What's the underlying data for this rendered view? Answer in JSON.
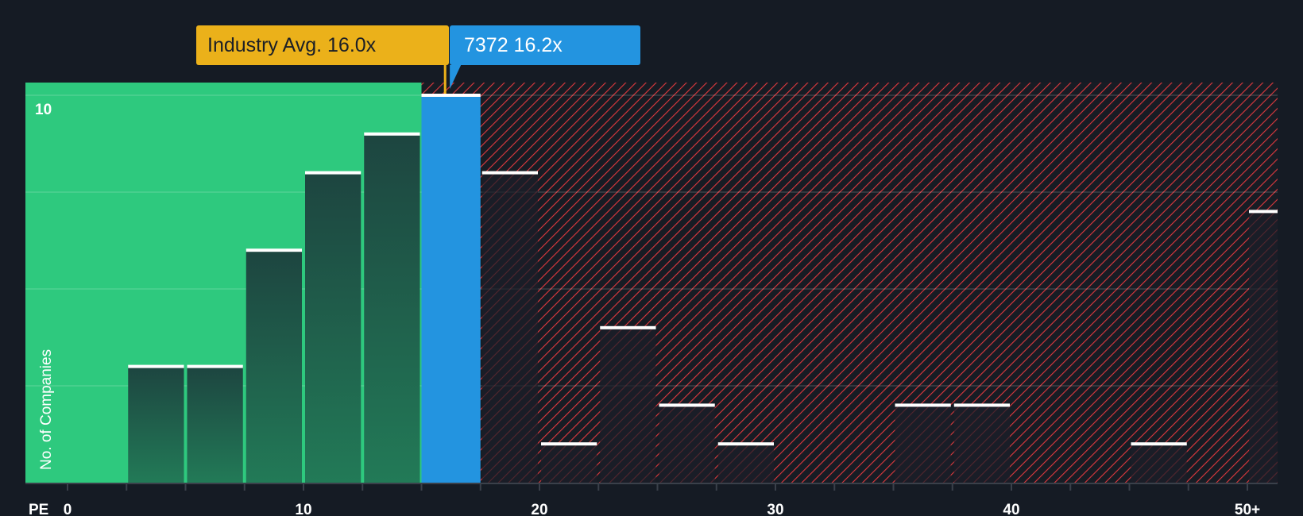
{
  "chart_data": {
    "type": "bar",
    "title": "",
    "xlabel": "PE",
    "ylabel": "No. of Companies",
    "bin_width": 2.5,
    "bins": [
      {
        "from": 0,
        "to": 2.5,
        "value": 0
      },
      {
        "from": 2.5,
        "to": 5,
        "value": 3
      },
      {
        "from": 5,
        "to": 7.5,
        "value": 3
      },
      {
        "from": 7.5,
        "to": 10,
        "value": 6
      },
      {
        "from": 10,
        "to": 12.5,
        "value": 8
      },
      {
        "from": 12.5,
        "to": 15,
        "value": 9
      },
      {
        "from": 15,
        "to": 17.5,
        "value": 10,
        "highlight": true
      },
      {
        "from": 17.5,
        "to": 20,
        "value": 8
      },
      {
        "from": 20,
        "to": 22.5,
        "value": 1
      },
      {
        "from": 22.5,
        "to": 25,
        "value": 4
      },
      {
        "from": 25,
        "to": 27.5,
        "value": 2
      },
      {
        "from": 27.5,
        "to": 30,
        "value": 1
      },
      {
        "from": 30,
        "to": 32.5,
        "value": 0
      },
      {
        "from": 32.5,
        "to": 35,
        "value": 0
      },
      {
        "from": 35,
        "to": 37.5,
        "value": 2
      },
      {
        "from": 37.5,
        "to": 40,
        "value": 2
      },
      {
        "from": 40,
        "to": 42.5,
        "value": 0
      },
      {
        "from": 42.5,
        "to": 45,
        "value": 0
      },
      {
        "from": 45,
        "to": 47.5,
        "value": 1
      },
      {
        "from": 47.5,
        "to": 50,
        "value": 0
      },
      {
        "from": 50,
        "to": 52.5,
        "value": 7
      }
    ],
    "xticks": [
      {
        "value": 0,
        "label": "0"
      },
      {
        "value": 10,
        "label": "10"
      },
      {
        "value": 20,
        "label": "20"
      },
      {
        "value": 30,
        "label": "30"
      },
      {
        "value": 40,
        "label": "40"
      },
      {
        "value": 50,
        "label": "50+"
      }
    ],
    "yticks": [
      {
        "value": 10,
        "label": "10"
      }
    ],
    "ylim": [
      0,
      10
    ],
    "industry_avg": {
      "value": 16.0,
      "label": "Industry Avg. 16.0x"
    },
    "company": {
      "value": 16.2,
      "label": "7372 16.2x"
    },
    "colors": {
      "background": "#151b24",
      "undervalued": "#2ec97e",
      "overvalued_hatch": "#e0393e",
      "company": "#2394e0",
      "industry": "#ebb11a"
    }
  }
}
